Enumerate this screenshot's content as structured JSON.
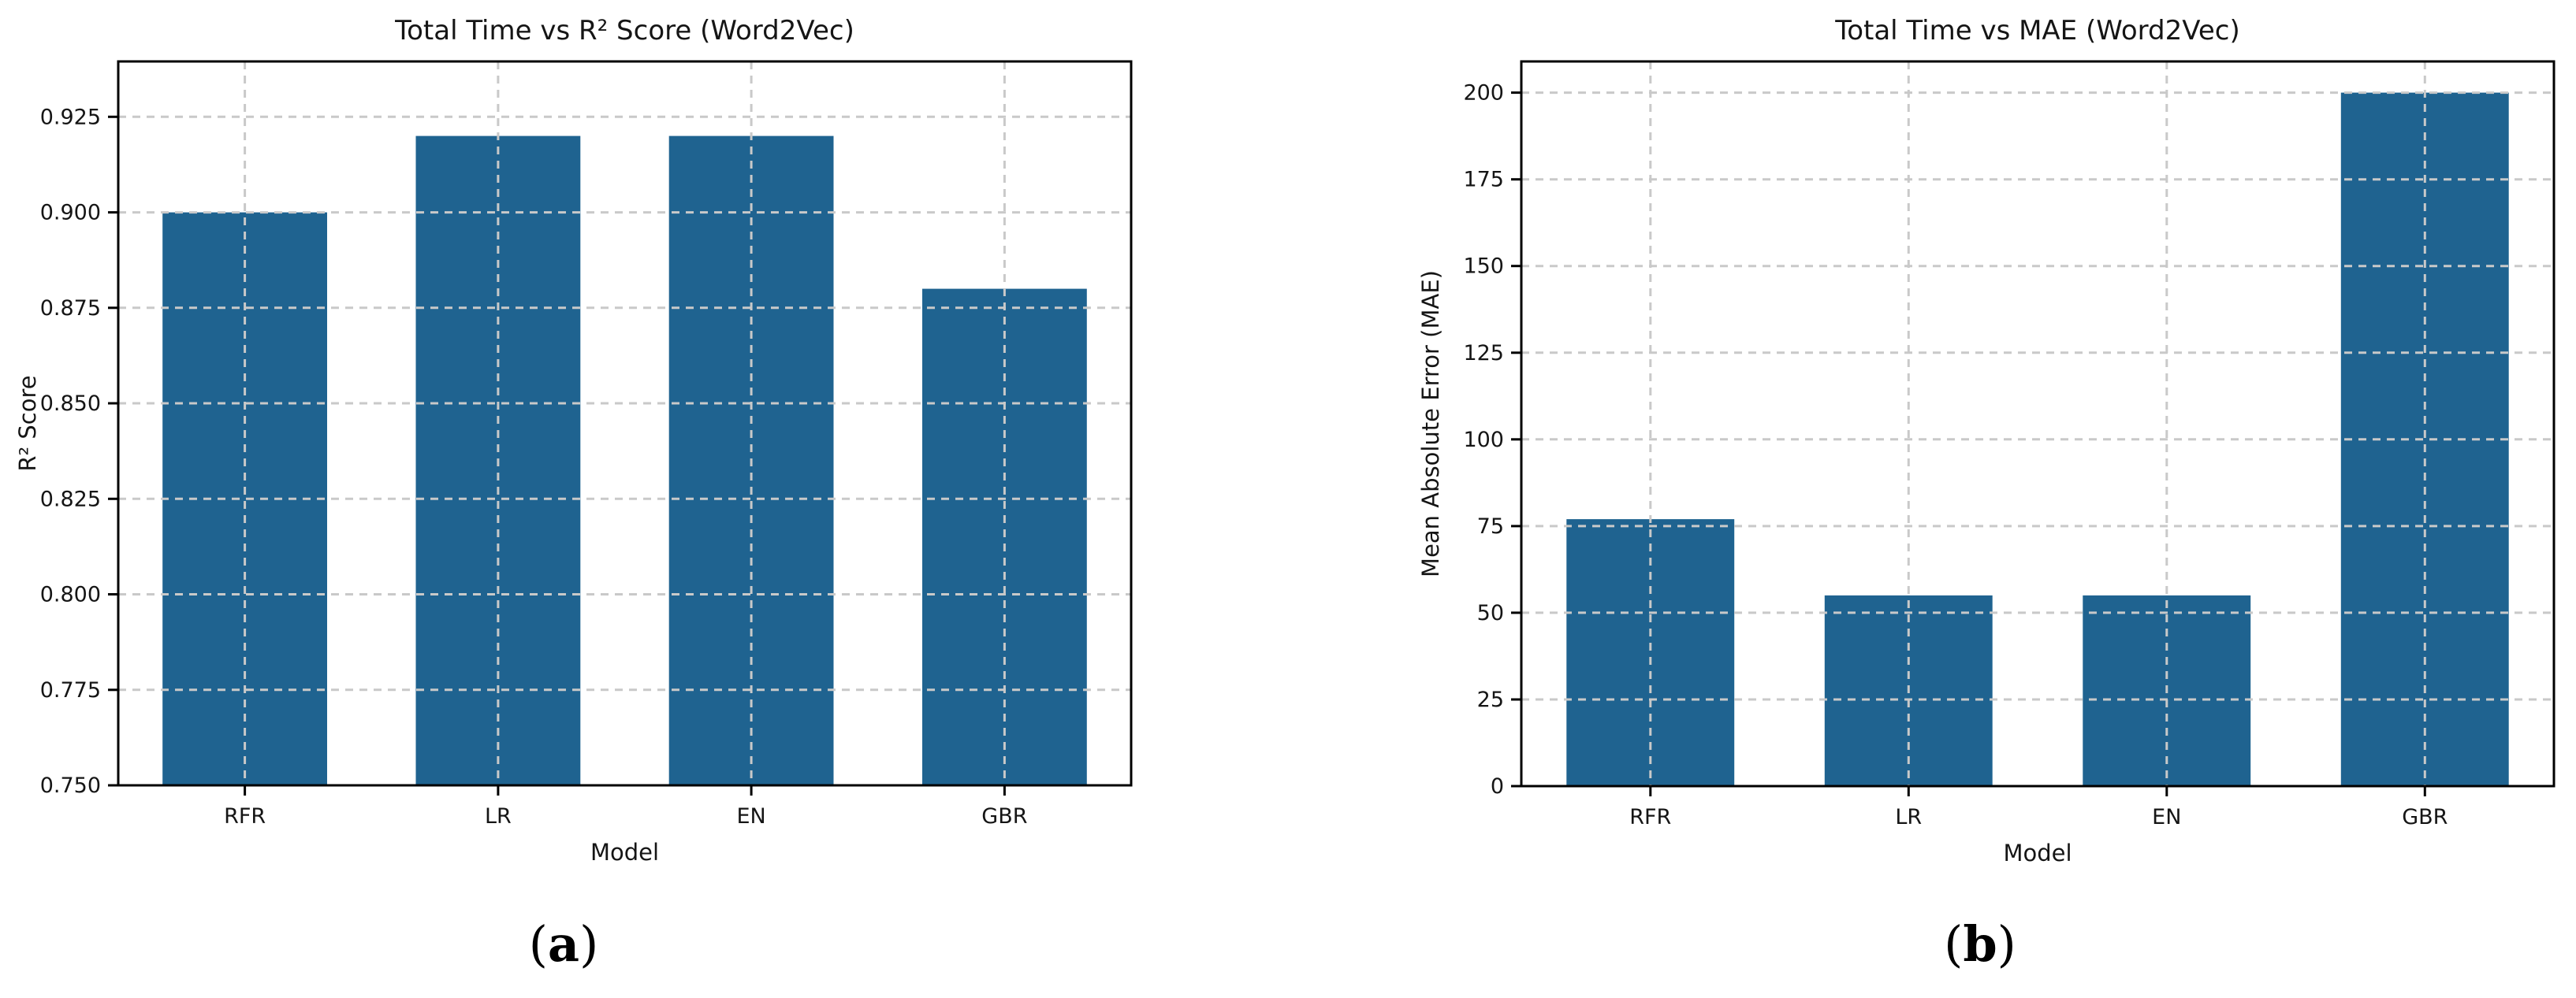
{
  "colors": {
    "bar": "#1F6390",
    "grid": "#c9c9c9",
    "spine": "#000000",
    "text": "#151515",
    "background": "#ffffff"
  },
  "captions": [
    {
      "open": "(",
      "letter": "a",
      "close": ")"
    },
    {
      "open": "(",
      "letter": "b",
      "close": ")"
    }
  ],
  "chart_data": [
    {
      "type": "bar",
      "title": "Total Time vs R² Score (Word2Vec)",
      "xlabel": "Model",
      "ylabel": "R² Score",
      "categories": [
        "RFR",
        "LR",
        "EN",
        "GBR"
      ],
      "values": [
        0.9,
        0.92,
        0.92,
        0.88
      ],
      "ylim": [
        0.75,
        0.9395
      ],
      "yticks": [
        0.75,
        0.775,
        0.8,
        0.825,
        0.85,
        0.875,
        0.9,
        0.925
      ],
      "ytick_labels": [
        "0.750",
        "0.775",
        "0.800",
        "0.825",
        "0.850",
        "0.875",
        "0.900",
        "0.925"
      ],
      "grid": true,
      "legend": false,
      "bar_color": "#1F6390"
    },
    {
      "type": "bar",
      "title": "Total Time vs MAE (Word2Vec)",
      "xlabel": "Model",
      "ylabel": "Mean Absolute Error (MAE)",
      "categories": [
        "RFR",
        "LR",
        "EN",
        "GBR"
      ],
      "values": [
        77,
        55,
        55,
        200
      ],
      "ylim": [
        0,
        209
      ],
      "yticks": [
        0,
        25,
        50,
        75,
        100,
        125,
        150,
        175,
        200
      ],
      "ytick_labels": [
        "0",
        "25",
        "50",
        "75",
        "100",
        "125",
        "150",
        "175",
        "200"
      ],
      "grid": true,
      "legend": false,
      "bar_color": "#1F6390"
    }
  ]
}
